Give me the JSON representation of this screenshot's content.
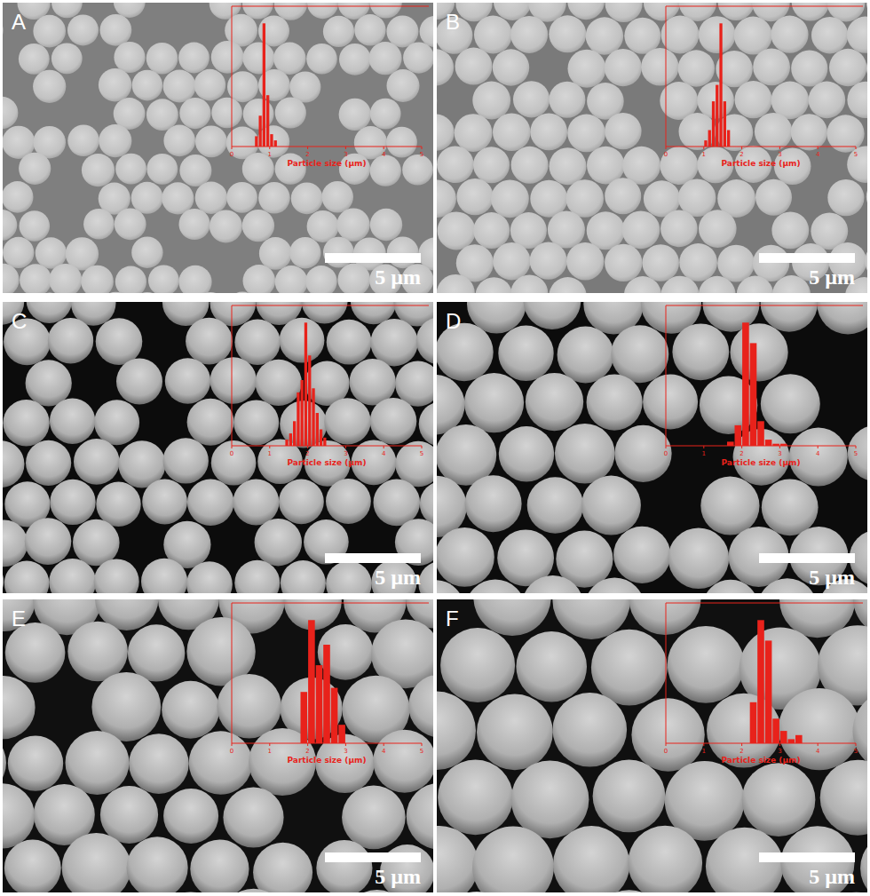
{
  "chart_data": [
    {
      "type": "histogram",
      "title": "A",
      "annotations": [
        "5 µm"
      ],
      "xlabel": "Particle size (μm)",
      "bins": [
        0.6,
        0.7,
        0.8,
        0.9,
        1.0,
        1.1,
        1.2
      ],
      "values": [
        5,
        15,
        60,
        25,
        6,
        3
      ],
      "color": "#e8221b",
      "xlim": [
        0,
        5
      ],
      "xticks": [
        0,
        1,
        2,
        3,
        4,
        5
      ],
      "ylim": [
        0,
        64
      ],
      "tick_labels": "x"
    },
    {
      "type": "histogram",
      "title": "B",
      "annotations": [
        "5 µm"
      ],
      "xlabel": "Particle size (μm)",
      "bins": [
        1.0,
        1.1,
        1.2,
        1.3,
        1.4,
        1.5,
        1.6,
        1.7
      ],
      "values": [
        3,
        8,
        22,
        30,
        60,
        22,
        8
      ],
      "color": "#e8221b",
      "xlim": [
        0,
        5
      ],
      "xticks": [
        0,
        1,
        2,
        3,
        4,
        5
      ],
      "ylim": [
        0,
        64
      ],
      "tick_labels": "x"
    },
    {
      "type": "histogram",
      "title": "C",
      "annotations": [
        "5 µm"
      ],
      "xlabel": "Particle size (μm)",
      "bins": [
        1.4,
        1.5,
        1.6,
        1.7,
        1.8,
        1.9,
        2.0,
        2.1,
        2.2,
        2.3,
        2.4,
        2.5
      ],
      "values": [
        3,
        6,
        12,
        26,
        32,
        60,
        44,
        28,
        16,
        8,
        4
      ],
      "color": "#e8221b",
      "xlim": [
        0,
        5
      ],
      "xticks": [
        0,
        1,
        2,
        3,
        4,
        5
      ],
      "ylim": [
        0,
        64
      ],
      "tick_labels": "x"
    },
    {
      "type": "histogram",
      "title": "D",
      "annotations": [
        "5 µm"
      ],
      "xlabel": "Particle size (μm)",
      "bins": [
        1.6,
        1.8,
        2.0,
        2.2,
        2.4,
        2.6,
        2.8,
        3.0,
        3.2
      ],
      "values": [
        2,
        10,
        60,
        50,
        12,
        3,
        1,
        1
      ],
      "color": "#e8221b",
      "xlim": [
        0,
        5
      ],
      "xticks": [
        0,
        1,
        2,
        3,
        4,
        5
      ],
      "ylim": [
        0,
        64
      ],
      "tick_labels": "x"
    },
    {
      "type": "histogram",
      "title": "E",
      "annotations": [
        "5 µm"
      ],
      "xlabel": "Particle size (μm)",
      "bins": [
        1.8,
        2.0,
        2.2,
        2.4,
        2.6,
        2.8,
        3.0
      ],
      "values": [
        25,
        60,
        38,
        48,
        27,
        9
      ],
      "color": "#e8221b",
      "xlim": [
        0,
        5
      ],
      "xticks": [
        0,
        1,
        2,
        3,
        4,
        5
      ],
      "ylim": [
        0,
        64
      ],
      "tick_labels": "x"
    },
    {
      "type": "histogram",
      "title": "F",
      "annotations": [
        "5 µm"
      ],
      "xlabel": "Particle size (μm)",
      "bins": [
        2.2,
        2.4,
        2.6,
        2.8,
        3.0,
        3.2,
        3.4,
        3.6
      ],
      "values": [
        20,
        60,
        50,
        12,
        6,
        2,
        4
      ],
      "color": "#e8221b",
      "xlim": [
        0,
        5
      ],
      "xticks": [
        0,
        1,
        2,
        3,
        4,
        5
      ],
      "ylim": [
        0,
        64
      ],
      "tick_labels": "x"
    }
  ]
}
